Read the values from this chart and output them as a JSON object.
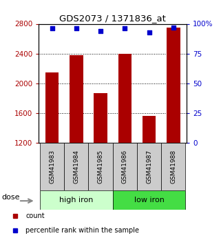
{
  "title": "GDS2073 / 1371836_at",
  "samples": [
    "GSM41983",
    "GSM41984",
    "GSM41985",
    "GSM41986",
    "GSM41987",
    "GSM41988"
  ],
  "bar_values": [
    2150,
    2380,
    1870,
    2400,
    1560,
    2750
  ],
  "percentile_values": [
    96,
    96,
    94,
    96,
    93,
    97
  ],
  "bar_color": "#aa0000",
  "percentile_color": "#0000cc",
  "ylim_left": [
    1200,
    2800
  ],
  "ylim_right": [
    0,
    100
  ],
  "yticks_left": [
    1200,
    1600,
    2000,
    2400,
    2800
  ],
  "yticks_right": [
    0,
    25,
    50,
    75,
    100
  ],
  "yticklabels_right": [
    "0",
    "25",
    "50",
    "75",
    "100%"
  ],
  "groups": [
    {
      "label": "high iron",
      "start": 0,
      "end": 3,
      "color": "#ccffcc"
    },
    {
      "label": "low iron",
      "start": 3,
      "end": 6,
      "color": "#44dd44"
    }
  ],
  "dose_label": "dose",
  "legend_items": [
    {
      "label": "count",
      "color": "#aa0000"
    },
    {
      "label": "percentile rank within the sample",
      "color": "#0000cc"
    }
  ],
  "label_box_color": "#cccccc",
  "bar_bottom": 1200
}
